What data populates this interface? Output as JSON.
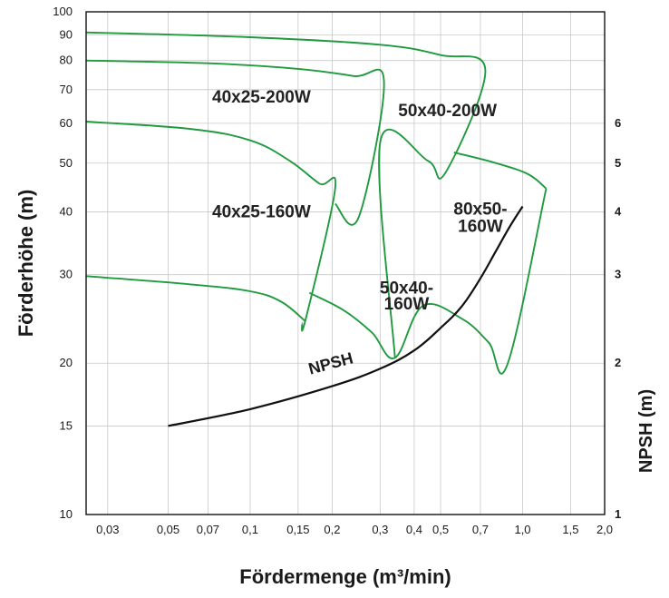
{
  "chart_data": {
    "type": "line",
    "title": "",
    "xlabel": "Fördermenge (m³/min)",
    "ylabel": "Förderhöhe (m)",
    "y2label": "NPSH (m)",
    "x_scale": "log",
    "y_scale": "log",
    "xlim": [
      0.025,
      2.0
    ],
    "ylim": [
      10,
      100
    ],
    "y2lim": [
      1,
      10
    ],
    "grid": true,
    "x_ticks": [
      {
        "v": 0.03,
        "label": "0,03"
      },
      {
        "v": 0.05,
        "label": "0,05"
      },
      {
        "v": 0.07,
        "label": "0,07"
      },
      {
        "v": 0.1,
        "label": "0,1"
      },
      {
        "v": 0.15,
        "label": "0,15"
      },
      {
        "v": 0.2,
        "label": "0,2"
      },
      {
        "v": 0.3,
        "label": "0,3"
      },
      {
        "v": 0.4,
        "label": "0,4"
      },
      {
        "v": 0.5,
        "label": "0,5"
      },
      {
        "v": 0.7,
        "label": "0,7"
      },
      {
        "v": 1.0,
        "label": "1,0"
      },
      {
        "v": 1.5,
        "label": "1,5"
      },
      {
        "v": 2.0,
        "label": "2,0"
      }
    ],
    "y_ticks": [
      {
        "v": 10,
        "label": "10"
      },
      {
        "v": 15,
        "label": "15"
      },
      {
        "v": 20,
        "label": "20"
      },
      {
        "v": 30,
        "label": "30"
      },
      {
        "v": 40,
        "label": "40"
      },
      {
        "v": 50,
        "label": "50"
      },
      {
        "v": 60,
        "label": "60"
      },
      {
        "v": 70,
        "label": "70"
      },
      {
        "v": 80,
        "label": "80"
      },
      {
        "v": 90,
        "label": "90"
      },
      {
        "v": 100,
        "label": "100"
      }
    ],
    "y2_ticks": [
      {
        "v": 1,
        "label": "1"
      },
      {
        "v": 2,
        "label": "2"
      },
      {
        "v": 3,
        "label": "3"
      },
      {
        "v": 4,
        "label": "4"
      },
      {
        "v": 5,
        "label": "5"
      },
      {
        "v": 6,
        "label": "6"
      }
    ],
    "series": [
      {
        "name": "40x25-200W",
        "color": "#1f9a3e",
        "points": [
          [
            0.025,
            60.5
          ],
          [
            0.06,
            58.5
          ],
          [
            0.1,
            55.5
          ],
          [
            0.14,
            50.5
          ],
          [
            0.18,
            45.5
          ],
          [
            0.205,
            44.5
          ],
          [
            0.16,
            24.5
          ],
          [
            0.155,
            24.0
          ]
        ]
      },
      {
        "name": "40x25-160W",
        "color": "#1f9a3e",
        "points": [
          [
            0.025,
            29.8
          ],
          [
            0.06,
            28.7
          ],
          [
            0.1,
            27.8
          ],
          [
            0.13,
            26.5
          ],
          [
            0.16,
            24.2
          ]
        ]
      },
      {
        "name": "50x40-200W",
        "color": "#1f9a3e",
        "points": [
          [
            0.025,
            80.0
          ],
          [
            0.07,
            79.0
          ],
          [
            0.15,
            77.0
          ],
          [
            0.24,
            74.5
          ],
          [
            0.31,
            72.5
          ],
          [
            0.25,
            39.0
          ],
          [
            0.205,
            41.5
          ]
        ]
      },
      {
        "name": "50x40-160W",
        "color": "#1f9a3e",
        "points": [
          [
            0.165,
            27.6
          ],
          [
            0.22,
            25.5
          ],
          [
            0.28,
            23.0
          ],
          [
            0.34,
            20.5
          ],
          [
            0.43,
            26.0
          ],
          [
            0.6,
            24.5
          ],
          [
            0.75,
            22.0
          ],
          [
            0.88,
            19.9
          ],
          [
            1.22,
            44.5
          ]
        ]
      },
      {
        "name": "80x50-160W",
        "color": "#1f9a3e",
        "points": [
          [
            0.56,
            52.5
          ],
          [
            0.8,
            50.0
          ],
          [
            1.05,
            47.5
          ],
          [
            1.22,
            44.5
          ]
        ]
      },
      {
        "name": "",
        "color": "#1f9a3e",
        "points": [
          [
            0.025,
            91.0
          ],
          [
            0.1,
            89.0
          ],
          [
            0.3,
            86.0
          ],
          [
            0.5,
            82.0
          ],
          [
            0.73,
            76.5
          ],
          [
            0.52,
            47.8
          ],
          [
            0.45,
            50.5
          ],
          [
            0.3,
            55.0
          ],
          [
            0.34,
            20.5
          ]
        ]
      },
      {
        "name": "NPSH",
        "color": "#111111",
        "axis": "y2",
        "points": [
          [
            0.05,
            1.5
          ],
          [
            0.1,
            1.62
          ],
          [
            0.2,
            1.8
          ],
          [
            0.3,
            1.95
          ],
          [
            0.4,
            2.12
          ],
          [
            0.5,
            2.35
          ],
          [
            0.6,
            2.6
          ],
          [
            0.7,
            2.95
          ],
          [
            0.8,
            3.35
          ],
          [
            0.9,
            3.75
          ],
          [
            1.0,
            4.1
          ]
        ]
      }
    ],
    "annotations": [
      {
        "text": "40x25-200W",
        "x": 0.11,
        "y": 66
      },
      {
        "text": "50x40-200W",
        "x": 0.53,
        "y": 62
      },
      {
        "text": "40x25-160W",
        "x": 0.11,
        "y": 39
      },
      {
        "text": "50x40-",
        "x": 0.375,
        "y": 27.5
      },
      {
        "text": "160W",
        "x": 0.375,
        "y": 25.6
      },
      {
        "text": "80x50-",
        "x": 0.7,
        "y": 39.5
      },
      {
        "text": "160W",
        "x": 0.7,
        "y": 36.5
      },
      {
        "text": "NPSH",
        "x": 0.2,
        "y2": 1.95
      }
    ]
  }
}
